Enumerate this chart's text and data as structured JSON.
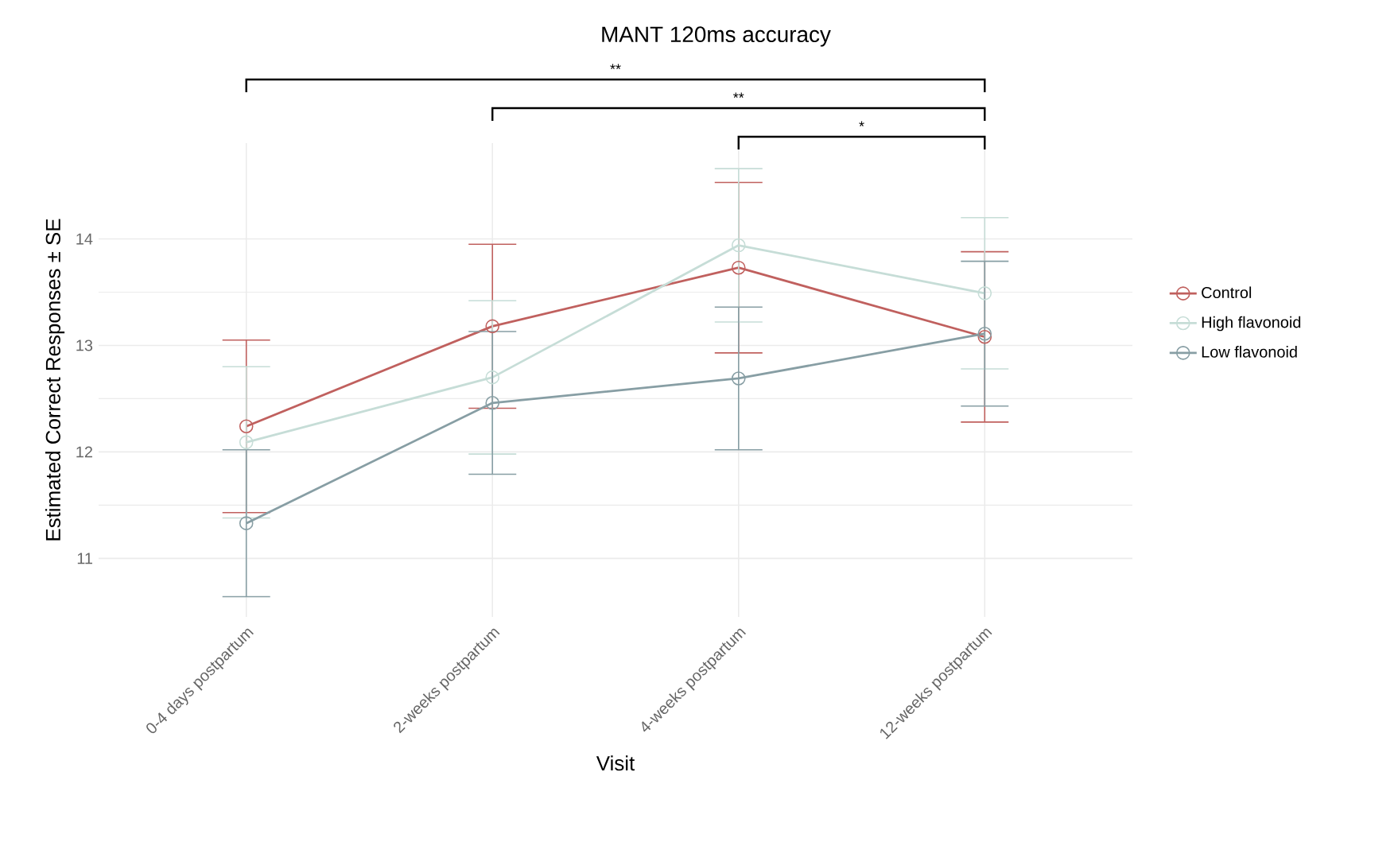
{
  "chart_data": {
    "type": "line",
    "title": "MANT 120ms accuracy",
    "xlabel": "Visit",
    "ylabel": "Estimated Correct Responses ± SE",
    "categories": [
      "0-4 days postpartum",
      "2-weeks postpartum",
      "4-weeks postpartum",
      "12-weeks postpartum"
    ],
    "series": [
      {
        "name": "Control",
        "color": "#c0605e",
        "values": [
          12.24,
          13.18,
          13.73,
          13.08
        ],
        "errors": [
          0.81,
          0.77,
          0.8,
          0.8
        ]
      },
      {
        "name": "High flavonoid",
        "color": "#c6ddd7",
        "values": [
          12.09,
          12.7,
          13.94,
          13.49
        ],
        "errors": [
          0.71,
          0.72,
          0.72,
          0.71
        ]
      },
      {
        "name": "Low flavonoid",
        "color": "#879ea4",
        "values": [
          11.33,
          12.46,
          12.69,
          13.11
        ],
        "errors": [
          0.69,
          0.67,
          0.67,
          0.68
        ]
      }
    ],
    "ylim": [
      10.45,
      14.9
    ],
    "yticks": [
      11,
      12,
      13,
      14
    ],
    "grid": true,
    "legend": "right",
    "marker": "circle",
    "line_style": "solid",
    "annotations": [
      "**",
      "**",
      "*"
    ]
  }
}
